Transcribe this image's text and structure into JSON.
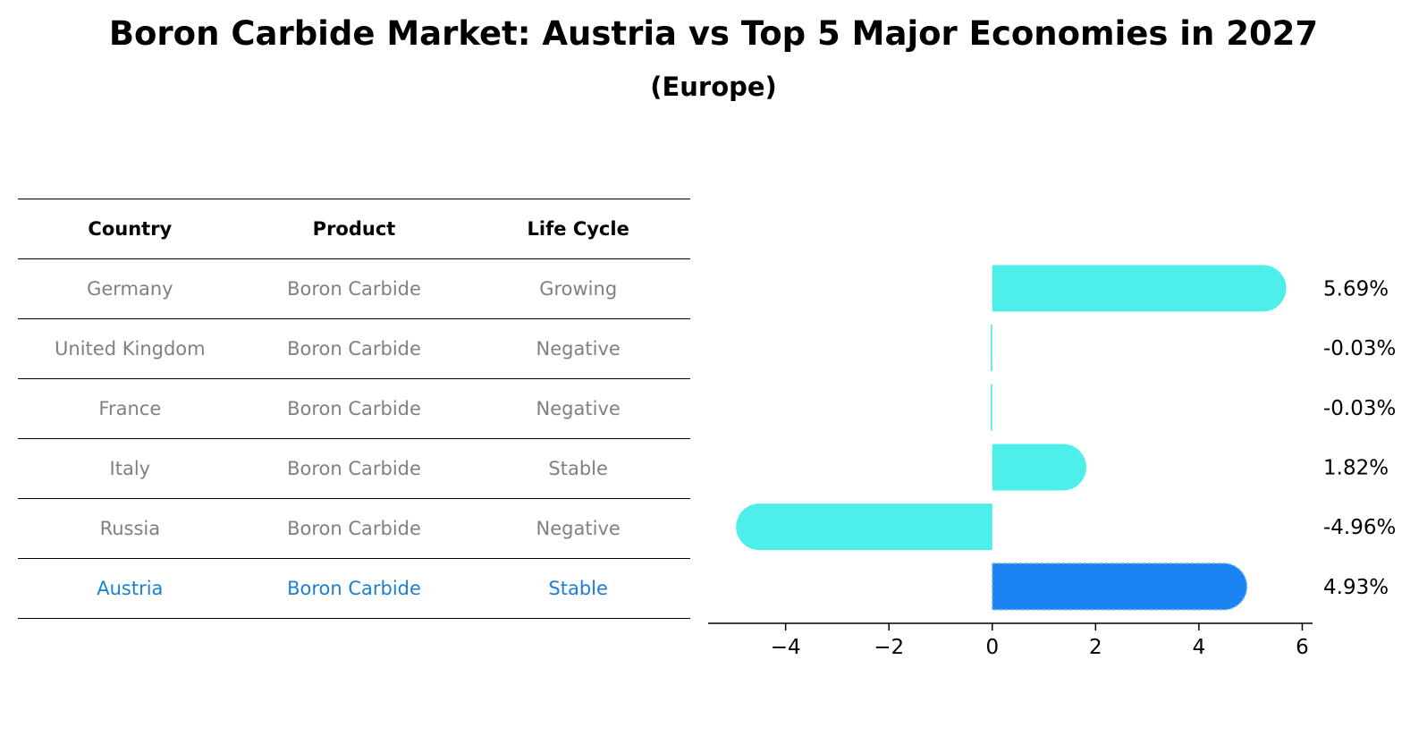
{
  "title": "Boron Carbide Market: Austria vs Top 5 Major Economies in 2027",
  "subtitle": "(Europe)",
  "table": {
    "headers": [
      "Country",
      "Product",
      "Life Cycle"
    ],
    "rows": [
      [
        "Germany",
        "Boron Carbide",
        "Growing"
      ],
      [
        "United Kingdom",
        "Boron Carbide",
        "Negative"
      ],
      [
        "France",
        "Boron Carbide",
        "Negative"
      ],
      [
        "Italy",
        "Boron Carbide",
        "Stable"
      ],
      [
        "Russia",
        "Boron Carbide",
        "Negative"
      ],
      [
        "Austria",
        "Boron Carbide",
        "Stable"
      ]
    ],
    "highlight_row": 5
  },
  "chart_data": {
    "type": "bar",
    "orientation": "horizontal",
    "categories": [
      "Germany",
      "United Kingdom",
      "France",
      "Italy",
      "Russia",
      "Austria"
    ],
    "values": [
      5.69,
      -0.03,
      -0.03,
      1.82,
      -4.96,
      4.93
    ],
    "value_labels": [
      "5.69%",
      "-0.03%",
      "-0.03%",
      "1.82%",
      "-4.96%",
      "4.93%"
    ],
    "xlim": [
      -5.5,
      6.2
    ],
    "xticks": [
      -4,
      -2,
      0,
      2,
      4,
      6
    ],
    "xtick_labels": [
      "−4",
      "−2",
      "0",
      "2",
      "4",
      "6"
    ],
    "colors": {
      "default": "#4eeeea",
      "highlight": "#1a85f2"
    },
    "highlight_index": 5,
    "grid": false
  }
}
